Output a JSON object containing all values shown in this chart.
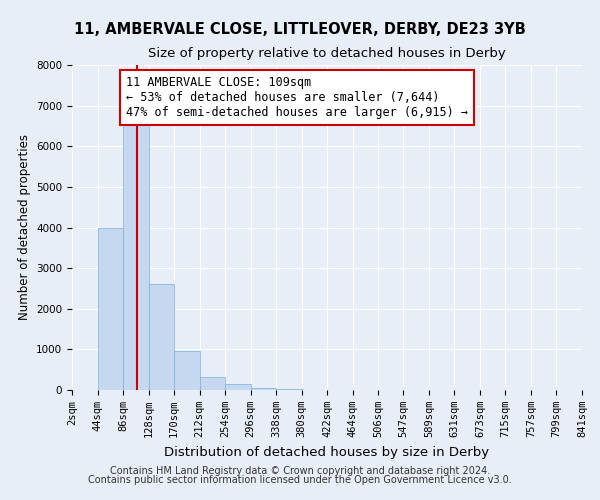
{
  "title": "11, AMBERVALE CLOSE, LITTLEOVER, DERBY, DE23 3YB",
  "subtitle": "Size of property relative to detached houses in Derby",
  "xlabel": "Distribution of detached houses by size in Derby",
  "ylabel": "Number of detached properties",
  "footnote1": "Contains HM Land Registry data © Crown copyright and database right 2024.",
  "footnote2": "Contains public sector information licensed under the Open Government Licence v3.0.",
  "bin_edges": [
    2,
    44,
    86,
    128,
    170,
    212,
    254,
    296,
    338,
    380,
    422,
    464,
    506,
    547,
    589,
    631,
    673,
    715,
    757,
    799,
    841
  ],
  "bar_heights": [
    0,
    4000,
    6600,
    2600,
    950,
    330,
    140,
    60,
    20,
    0,
    0,
    0,
    0,
    0,
    0,
    0,
    0,
    0,
    0,
    0
  ],
  "bar_color": "#c5d8f0",
  "bar_edge_color": "#7ab0d8",
  "property_size": 109,
  "vline_color": "#cc0000",
  "ylim": [
    0,
    8000
  ],
  "annotation_text": "11 AMBERVALE CLOSE: 109sqm\n← 53% of detached houses are smaller (7,644)\n47% of semi-detached houses are larger (6,915) →",
  "annotation_box_color": "#ffffff",
  "annotation_border_color": "#cc0000",
  "background_color": "#e8eef8",
  "grid_color": "#ffffff",
  "title_fontsize": 10.5,
  "subtitle_fontsize": 9.5,
  "xlabel_fontsize": 9.5,
  "ylabel_fontsize": 8.5,
  "tick_fontsize": 7.5,
  "annotation_fontsize": 8.5,
  "footnote_fontsize": 7.0,
  "yticks": [
    0,
    1000,
    2000,
    3000,
    4000,
    5000,
    6000,
    7000,
    8000
  ]
}
